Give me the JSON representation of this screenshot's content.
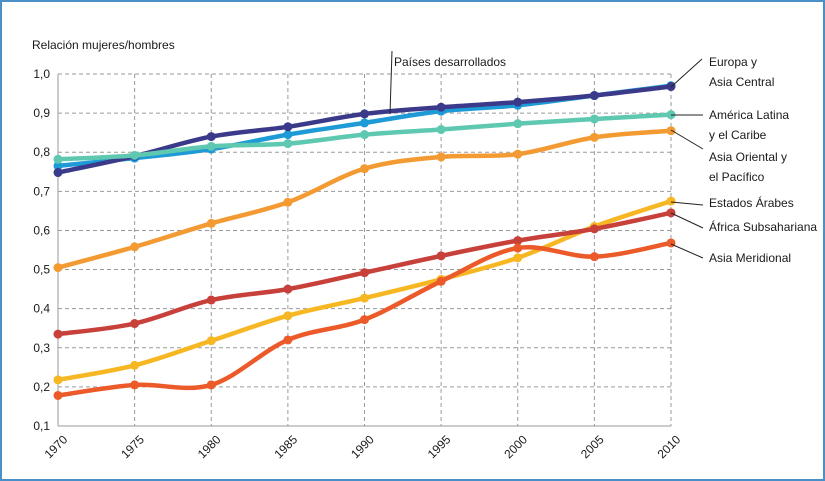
{
  "chart_data": {
    "type": "line",
    "ylabel": "Relación mujeres/hombres",
    "xlabel": "",
    "title": "",
    "ylim": [
      0.1,
      1.0
    ],
    "grid": true,
    "x": [
      "1970",
      "1975",
      "1980",
      "1985",
      "1990",
      "1995",
      "2000",
      "2005",
      "2010"
    ],
    "y_ticks": [
      "1,0",
      "0,9",
      "0,8",
      "0,7",
      "0,6",
      "0,5",
      "0,4",
      "0,3",
      "0,2",
      "0,1"
    ],
    "series": [
      {
        "name": "Europa y Asia Central",
        "color": "#1e9ad6",
        "values": [
          0.765,
          0.785,
          0.808,
          0.845,
          0.875,
          0.905,
          0.92,
          0.945,
          0.97
        ]
      },
      {
        "name": "Países desarrollados",
        "color": "#3b3a8a",
        "values": [
          0.748,
          0.79,
          0.84,
          0.865,
          0.898,
          0.915,
          0.928,
          0.945,
          0.968
        ]
      },
      {
        "name": "América Latina y el Caribe",
        "color": "#5ec8b0",
        "values": [
          0.782,
          0.792,
          0.815,
          0.822,
          0.845,
          0.858,
          0.873,
          0.885,
          0.896
        ]
      },
      {
        "name": "Asia Oriental y el Pacífico",
        "color": "#f39a32",
        "values": [
          0.505,
          0.558,
          0.618,
          0.672,
          0.758,
          0.788,
          0.795,
          0.838,
          0.855
        ]
      },
      {
        "name": "Estados Árabes",
        "color": "#f7b723",
        "values": [
          0.218,
          0.255,
          0.318,
          0.382,
          0.427,
          0.475,
          0.53,
          0.61,
          0.675
        ]
      },
      {
        "name": "África Subsahariana",
        "color": "#c8403a",
        "values": [
          0.335,
          0.362,
          0.422,
          0.45,
          0.492,
          0.535,
          0.574,
          0.604,
          0.645
        ]
      },
      {
        "name": "Asia Meridional",
        "color": "#eb5a28",
        "values": [
          0.178,
          0.205,
          0.205,
          0.32,
          0.372,
          0.47,
          0.555,
          0.533,
          0.568
        ]
      }
    ],
    "annotations": [
      {
        "series": "Países desarrollados",
        "lines": [
          "Países desarrollados"
        ]
      },
      {
        "series": "Europa y Asia Central",
        "lines": [
          "Europa y",
          "Asia Central"
        ]
      },
      {
        "series": "América Latina y el Caribe",
        "lines": [
          "América Latina",
          "y el Caribe"
        ]
      },
      {
        "series": "Asia Oriental y el Pacífico",
        "lines": [
          "Asia Oriental y",
          "el Pacífico"
        ]
      },
      {
        "series": "Estados Árabes",
        "lines": [
          "Estados Árabes"
        ]
      },
      {
        "series": "África Subsahariana",
        "lines": [
          "África Subsahariana"
        ]
      },
      {
        "series": "Asia Meridional",
        "lines": [
          "Asia Meridional"
        ]
      }
    ]
  }
}
